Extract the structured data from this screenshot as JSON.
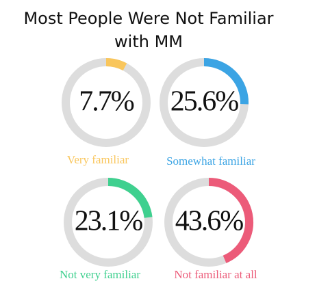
{
  "chart_data": {
    "type": "donut",
    "title": "Most People Were Not Familiar with MM",
    "categories": [
      "Very familiar",
      "Somewhat familiar",
      "Not very familiar",
      "Not familiar at all"
    ],
    "values": [
      7.7,
      25.6,
      23.1,
      43.6
    ],
    "value_labels": [
      "7.7%",
      "25.6%",
      "23.1%",
      "43.6%"
    ],
    "colors": [
      "#f9c65c",
      "#3ba4e4",
      "#3fd08f",
      "#ec5b79"
    ],
    "track_color": "#dddddd"
  }
}
